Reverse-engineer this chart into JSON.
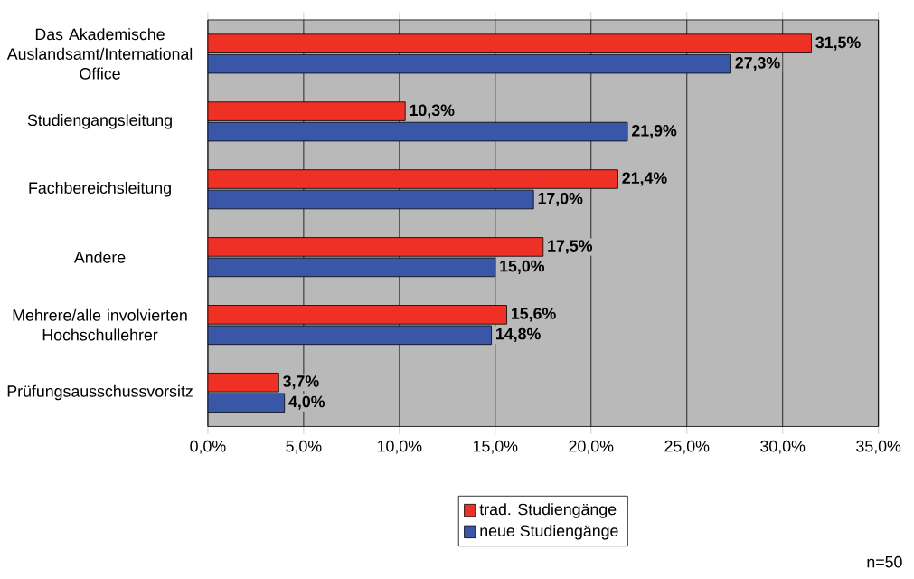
{
  "chart_data": {
    "type": "bar",
    "orientation": "horizontal",
    "categories": [
      "Das Akademische Auslandsamt/International Office",
      "Studiengangsleitung",
      "Fachbereichsleitung",
      "Andere",
      "Mehrere/alle involvierten Hochschullehrer",
      "Prüfungsausschussvorsitz"
    ],
    "series": [
      {
        "name": "trad. Studiengänge",
        "color": "#ee3124",
        "values": [
          31.5,
          10.3,
          21.4,
          17.5,
          15.6,
          3.7
        ],
        "value_labels": [
          "31,5%",
          "10,3%",
          "21,4%",
          "17,5%",
          "15,6%",
          "3,7%"
        ]
      },
      {
        "name": "neue Studiengänge",
        "color": "#3a56a6",
        "values": [
          27.3,
          21.9,
          17.0,
          15.0,
          14.8,
          4.0
        ],
        "value_labels": [
          "27,3%",
          "21,9%",
          "17,0%",
          "15,0%",
          "14,8%",
          "4,0%"
        ]
      }
    ],
    "xlim": [
      0,
      35
    ],
    "xticks": [
      {
        "value": 0,
        "label": "0,0%"
      },
      {
        "value": 5,
        "label": "5,0%"
      },
      {
        "value": 10,
        "label": "10,0%"
      },
      {
        "value": 15,
        "label": "15,0%"
      },
      {
        "value": 20,
        "label": "20,0%"
      },
      {
        "value": 25,
        "label": "25,0%"
      },
      {
        "value": 30,
        "label": "30,0%"
      },
      {
        "value": 35,
        "label": "35,0%"
      }
    ],
    "grid": "x",
    "legend": "bottom",
    "annotations": [
      "n=50"
    ]
  }
}
